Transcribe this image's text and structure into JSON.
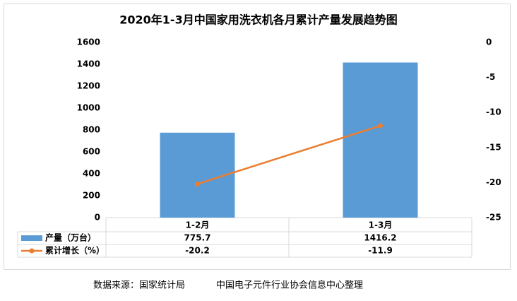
{
  "chart_data": {
    "type": "bar_line",
    "title": "2020年1-3月中国家用洗衣机各月累计产量发展趋势图",
    "categories": [
      "1-2月",
      "1-3月"
    ],
    "series": [
      {
        "name": "产量（万台）",
        "color": "#5b9bd5",
        "type": "bar",
        "values": [
          775.7,
          1416.2
        ]
      },
      {
        "name": "累计增长（%）",
        "color": "#ed7d31",
        "type": "line",
        "axis": "y2",
        "values": [
          -20.2,
          -11.9
        ]
      }
    ],
    "ylim": [
      0,
      1600
    ],
    "yticks": [
      0,
      200,
      400,
      600,
      800,
      1000,
      1200,
      1400,
      1600
    ],
    "y2lim": [
      -25,
      0
    ],
    "y2ticks": [
      0,
      -5,
      -10,
      -15,
      -20,
      -25
    ],
    "data_table": true
  },
  "footer": {
    "source": "数据来源：国家统计局",
    "organizer": "中国电子元件行业协会信息中心整理"
  }
}
